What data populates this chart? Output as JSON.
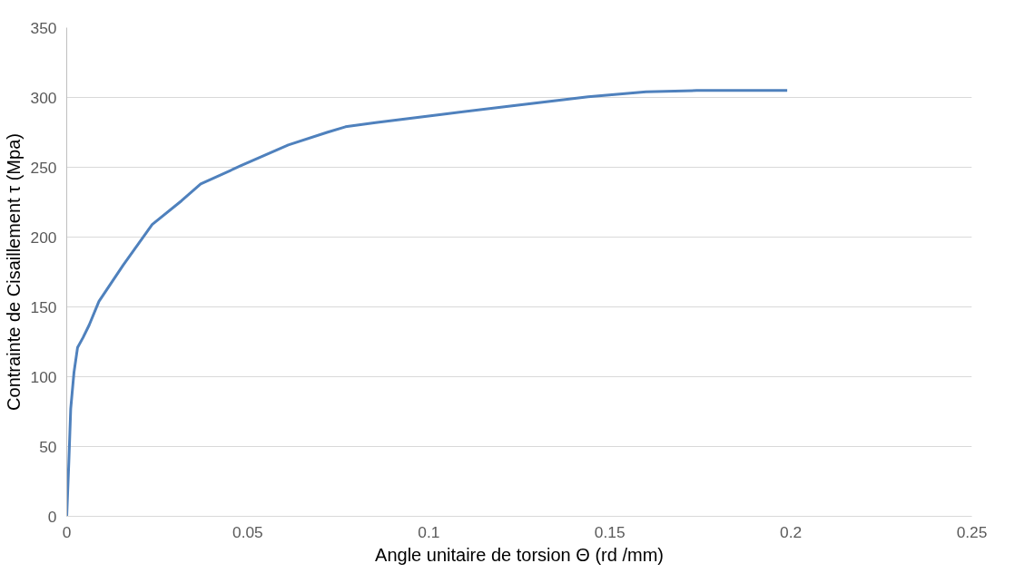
{
  "chart_data": {
    "type": "line",
    "xlabel": "Angle unitaire de torsion Θ (rd /mm)",
    "ylabel": "Contrainte de Cisaillement τ (Mpa)",
    "series": [
      {
        "color": "#4f81bd",
        "x": [
          0,
          0.0006,
          0.0011,
          0.002,
          0.003,
          0.0045,
          0.0062,
          0.0089,
          0.0156,
          0.0236,
          0.0317,
          0.037,
          0.048,
          0.0612,
          0.0719,
          0.077,
          0.0853,
          0.104,
          0.123,
          0.144,
          0.16,
          0.174,
          0.199
        ],
        "values": [
          0,
          40,
          77,
          103,
          121,
          128,
          137,
          154,
          180,
          209,
          226,
          238,
          251,
          266,
          275,
          279,
          282,
          288,
          294,
          300.5,
          304,
          305,
          305
        ]
      }
    ],
    "xlim": [
      0,
      0.25
    ],
    "xticks": [
      0,
      0.05,
      0.1,
      0.15,
      0.2,
      0.25
    ],
    "ylim": [
      0,
      350
    ],
    "yticks": [
      0,
      50,
      100,
      150,
      200,
      250,
      300,
      350
    ],
    "grid": "y",
    "marker": "none",
    "line_style": "solid"
  }
}
